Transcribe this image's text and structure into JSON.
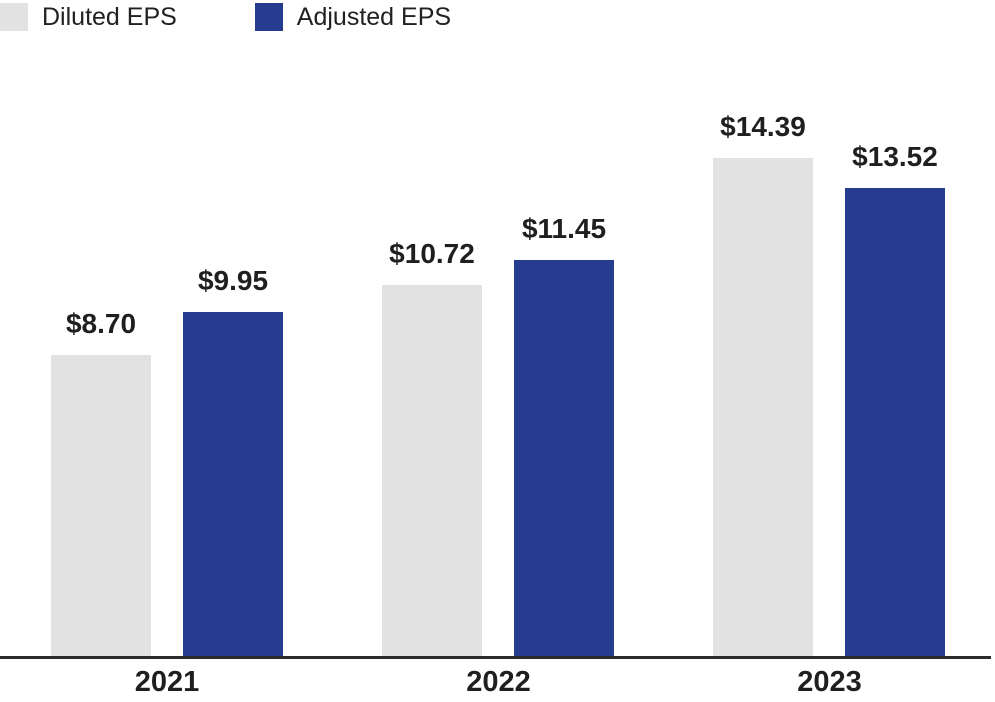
{
  "legend": {
    "items": [
      {
        "label": "Diluted EPS",
        "color": "#E2E2E2"
      },
      {
        "label": "Adjusted EPS",
        "color": "#253C8F"
      }
    ]
  },
  "chart_data": {
    "type": "bar",
    "categories": [
      "2021",
      "2022",
      "2023"
    ],
    "series": [
      {
        "name": "Diluted EPS",
        "color": "#E2E2E2",
        "values": [
          8.7,
          10.72,
          14.39
        ],
        "labels": [
          "$8.70",
          "$10.72",
          "$14.39"
        ]
      },
      {
        "name": "Adjusted EPS",
        "color": "#253C8F",
        "values": [
          9.95,
          11.45,
          13.52
        ],
        "labels": [
          "$9.95",
          "$11.45",
          "$13.52"
        ]
      }
    ],
    "value_prefix": "$",
    "ylim": [
      0,
      16
    ],
    "grid": false,
    "axis_color": "#2B2B2B",
    "text_color": "#1F1F1F",
    "legend_position": "top-left"
  }
}
